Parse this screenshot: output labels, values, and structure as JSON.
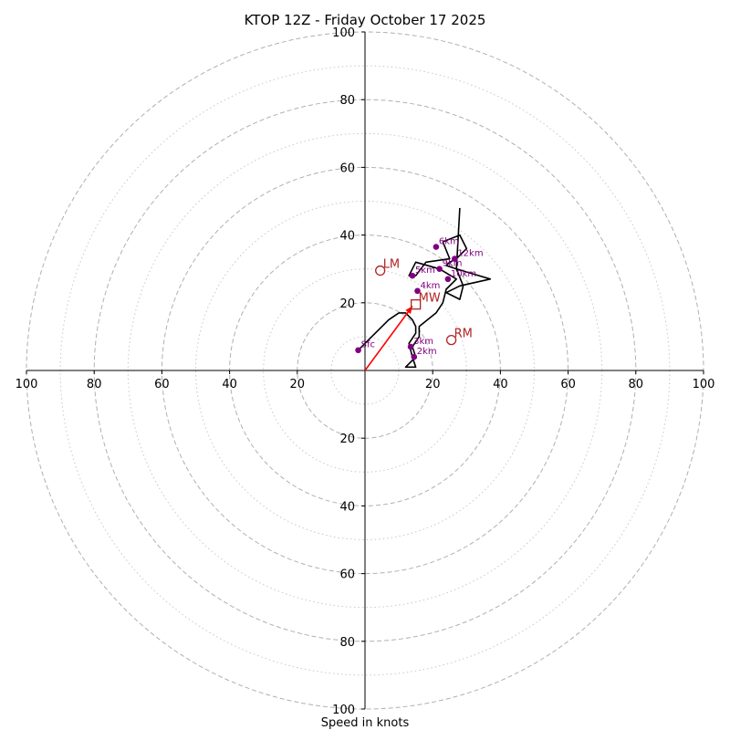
{
  "chart_data": {
    "type": "hodograph",
    "title": "KTOP 12Z - Friday October 17 2025",
    "xlabel": "Speed in knots",
    "range": [
      -100,
      100
    ],
    "major_rings": [
      20,
      40,
      60,
      80,
      100
    ],
    "minor_rings": [
      10,
      30,
      50,
      70,
      90
    ],
    "tick_labels": {
      "x_left": [
        "100",
        "80",
        "60",
        "40",
        "20"
      ],
      "x_right": [
        "20",
        "40",
        "60",
        "80",
        "100"
      ],
      "y_top": [
        "20",
        "40",
        "60",
        "80",
        "100"
      ],
      "y_bottom": [
        "20",
        "40",
        "60",
        "80",
        "100"
      ]
    },
    "colors": {
      "trace": "#000000",
      "height_marker": "#800080",
      "motion_marker": "#b22222",
      "mean_wind_vector": "#ff0000",
      "ring_major": "#b0b0b0",
      "ring_minor": "#c8c8c8"
    },
    "hodograph": {
      "u": [
        -2,
        5,
        7,
        10,
        12,
        14,
        15,
        15,
        13,
        14,
        15,
        12,
        15,
        14,
        16,
        16,
        21,
        23,
        24,
        27,
        22,
        15,
        13,
        15,
        18,
        25,
        23,
        28,
        30,
        27,
        25,
        24,
        27,
        37,
        28,
        24,
        26,
        28,
        29,
        27,
        28
      ],
      "v": [
        6,
        13,
        15,
        17,
        17,
        15,
        13,
        11,
        8,
        4,
        1,
        1,
        4,
        7,
        10,
        13,
        17,
        20,
        24,
        27,
        30,
        32,
        28,
        28,
        32,
        33,
        38,
        40,
        36,
        33,
        32,
        31,
        30,
        27,
        25,
        23,
        22,
        21,
        25,
        30,
        48
      ]
    },
    "height_markers": [
      {
        "label": "Sfc",
        "u": -2,
        "v": 6
      },
      {
        "label": "2km",
        "u": 14.5,
        "v": 4
      },
      {
        "label": "3km",
        "u": 13.5,
        "v": 7
      },
      {
        "label": "4km",
        "u": 15.5,
        "v": 23.5
      },
      {
        "label": "5km",
        "u": 14,
        "v": 28
      },
      {
        "label": "6km",
        "u": 21,
        "v": 36.5
      },
      {
        "label": "9km",
        "u": 22,
        "v": 30
      },
      {
        "label": "10km",
        "u": 24.5,
        "v": 27
      },
      {
        "label": "12km",
        "u": 26.5,
        "v": 33
      }
    ],
    "motion_markers": [
      {
        "label": "LM",
        "u": 4.5,
        "v": 29.5,
        "shape": "circle"
      },
      {
        "label": "RM",
        "u": 25.5,
        "v": 9,
        "shape": "circle"
      },
      {
        "label": "MW",
        "u": 15,
        "v": 19.5,
        "shape": "square"
      }
    ],
    "mean_wind_vector": {
      "u": 14,
      "v": 19
    }
  }
}
